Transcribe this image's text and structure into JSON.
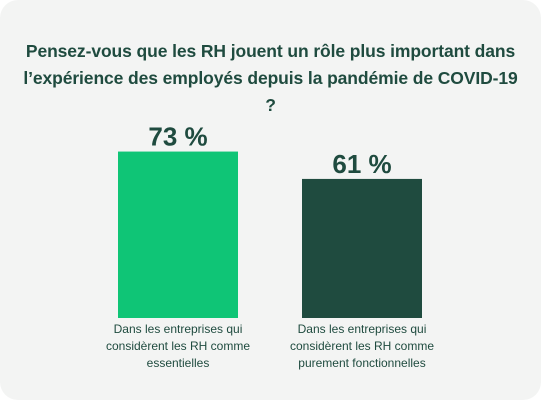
{
  "chart_data": {
    "type": "bar",
    "title": "Pensez-vous que les RH jouent un rôle plus important dans l’expérience des employés depuis la pandémie de COVID-19 ?",
    "categories": [
      [
        "Dans les entreprises qui",
        "considèrent les RH comme",
        "essentielles"
      ],
      [
        "Dans les entreprises qui",
        "considèrent les RH comme",
        "purement fonctionnelles"
      ]
    ],
    "values": [
      73,
      61
    ],
    "value_labels": [
      "73 %",
      "61 %"
    ],
    "colors": [
      "#0fc576",
      "#1f4b3f"
    ],
    "ylim": [
      0,
      100
    ],
    "grid": false,
    "legend": "none"
  },
  "colors": {
    "background": "#f3f4f3",
    "title": "#1f4b3f",
    "value_label": "#1f4b3f",
    "category_label": "#1f4b3f"
  }
}
